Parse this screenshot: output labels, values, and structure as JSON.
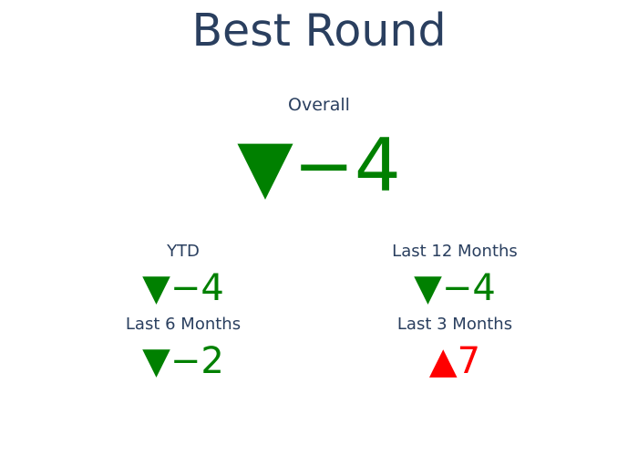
{
  "title": "Best Round",
  "colors": {
    "text": "#2a3f5f",
    "decreasing": "#008000",
    "increasing": "#ff0000"
  },
  "chart_data": {
    "type": "indicator",
    "title": "Best Round",
    "indicators": [
      {
        "id": "overall",
        "label": "Overall",
        "delta": -4,
        "direction": "down",
        "display": "▼−4"
      },
      {
        "id": "ytd",
        "label": "YTD",
        "delta": -4,
        "direction": "down",
        "display": "▼−4"
      },
      {
        "id": "last12",
        "label": "Last 12 Months",
        "delta": -4,
        "direction": "down",
        "display": "▼−4"
      },
      {
        "id": "last6",
        "label": "Last 6 Months",
        "delta": -2,
        "direction": "down",
        "display": "▼−2"
      },
      {
        "id": "last3",
        "label": "Last 3 Months",
        "delta": 7,
        "direction": "up",
        "display": "▲7"
      }
    ]
  }
}
